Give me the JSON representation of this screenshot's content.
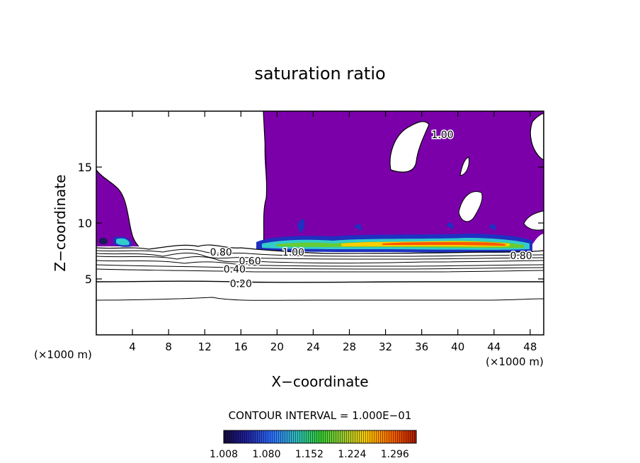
{
  "chart_data": {
    "type": "heatmap",
    "title": "saturation ratio",
    "xlabel": "X−coordinate",
    "ylabel": "Z−coordinate",
    "x_unit_left": "(×1000 m)",
    "x_unit_right": "(×1000 m)",
    "xlim": [
      0,
      49.5
    ],
    "ylim": [
      0,
      20
    ],
    "xticks": [
      4,
      8,
      12,
      16,
      20,
      24,
      28,
      32,
      36,
      40,
      44,
      48
    ],
    "yticks": [
      5,
      10,
      15
    ],
    "contour_interval_label": "CONTOUR INTERVAL = 1.000E−01",
    "contour_labels": [
      {
        "text": "0.20",
        "x": 16.0,
        "y": 4.6
      },
      {
        "text": "0.40",
        "x": 15.3,
        "y": 5.9
      },
      {
        "text": "0.60",
        "x": 17.0,
        "y": 6.6
      },
      {
        "text": "0.80",
        "x": 13.8,
        "y": 7.4
      },
      {
        "text": "1.00",
        "x": 21.8,
        "y": 7.4
      },
      {
        "text": "0.80",
        "x": 47.0,
        "y": 7.1
      },
      {
        "text": "1.00",
        "x": 38.3,
        "y": 17.9
      }
    ],
    "colorbar": {
      "min": 1.008,
      "max": 1.332,
      "tick_labels": [
        "1.008",
        "1.080",
        "1.152",
        "1.224",
        "1.296"
      ],
      "colors": [
        "#1a0a4a",
        "#2020a0",
        "#3366ff",
        "#33cccc",
        "#33cc33",
        "#99cc33",
        "#ffcc00",
        "#ff6600",
        "#cc2200"
      ]
    },
    "background_color": "#7b00aa"
  }
}
